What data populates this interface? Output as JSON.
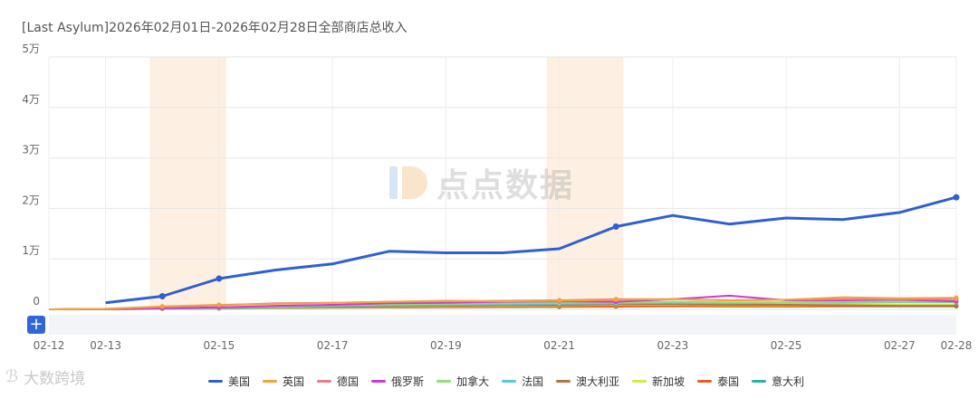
{
  "title": "[Last Asylum]2026年02月01日-2026年02月28日全部商店总收入",
  "watermark": "点点数据",
  "footer_logo": "大数跨境",
  "toolbar": {
    "expand_label": "+"
  },
  "colors": {
    "highlight_band": "#fdf0e2",
    "grid": "#e6e6e6",
    "axis": "#cfcfcf"
  },
  "chart_data": {
    "type": "line",
    "title": "[Last Asylum]2026年02月01日-2026年02月28日全部商店总收入",
    "x": [
      "02-12",
      "02-13",
      "02-14",
      "02-15",
      "02-16",
      "02-17",
      "02-18",
      "02-19",
      "02-20",
      "02-21",
      "02-22",
      "02-23",
      "02-24",
      "02-25",
      "02-26",
      "02-27",
      "02-28"
    ],
    "x_tick_labels": [
      "02-12",
      "02-13",
      "02-15",
      "02-17",
      "02-19",
      "02-21",
      "02-23",
      "02-25",
      "02-27",
      "02-28"
    ],
    "y_tick_labels": [
      "0",
      "1万",
      "2万",
      "3万",
      "4万",
      "5万"
    ],
    "ylim": [
      0,
      50000
    ],
    "grid": true,
    "legend_position": "bottom",
    "highlight_bands": [
      [
        "02-14",
        "02-15"
      ],
      [
        "02-21",
        "02-22"
      ]
    ],
    "series": [
      {
        "name": "美国",
        "color": "#2f5fd0",
        "width": 3,
        "values": [
          null,
          1300,
          2600,
          6100,
          7800,
          9000,
          11500,
          11200,
          11200,
          12000,
          16400,
          18600,
          16900,
          18100,
          17800,
          19200,
          22200
        ]
      },
      {
        "name": "英国",
        "color": "#f2a23b",
        "width": 2,
        "values": [
          0,
          100,
          600,
          900,
          1100,
          1300,
          1500,
          1700,
          1600,
          1700,
          1900,
          2000,
          1800,
          1900,
          2400,
          2200,
          2300
        ]
      },
      {
        "name": "德国",
        "color": "#ee7b86",
        "width": 2,
        "values": [
          0,
          100,
          500,
          800,
          1200,
          1300,
          1500,
          1600,
          1700,
          1800,
          2000,
          2000,
          1800,
          1900,
          2000,
          2000,
          2000
        ]
      },
      {
        "name": "俄罗斯",
        "color": "#c93ad6",
        "width": 2,
        "values": [
          0,
          50,
          200,
          400,
          700,
          900,
          1200,
          1300,
          1500,
          1600,
          1500,
          2000,
          2700,
          1800,
          1800,
          1900,
          1600
        ]
      },
      {
        "name": "加拿大",
        "color": "#8fde7b",
        "width": 2,
        "values": [
          0,
          40,
          200,
          400,
          600,
          800,
          1000,
          1100,
          1200,
          1300,
          1400,
          1500,
          1400,
          1400,
          1500,
          1500,
          1500
        ]
      },
      {
        "name": "法国",
        "color": "#55c7e6",
        "width": 2,
        "values": [
          0,
          30,
          150,
          300,
          500,
          700,
          800,
          900,
          1000,
          1100,
          1200,
          1300,
          1200,
          1300,
          1300,
          1400,
          1400
        ]
      },
      {
        "name": "澳大利亚",
        "color": "#b8733b",
        "width": 2,
        "values": [
          0,
          30,
          150,
          250,
          400,
          500,
          600,
          700,
          800,
          900,
          1000,
          1000,
          900,
          900,
          800,
          700,
          700
        ]
      },
      {
        "name": "新加坡",
        "color": "#d6e84a",
        "width": 2,
        "values": [
          0,
          20,
          100,
          200,
          300,
          400,
          500,
          600,
          700,
          800,
          900,
          900,
          800,
          800,
          900,
          900,
          900
        ]
      },
      {
        "name": "泰国",
        "color": "#ea5d1f",
        "width": 2,
        "values": [
          0,
          20,
          100,
          200,
          300,
          350,
          400,
          450,
          500,
          550,
          600,
          650,
          600,
          600,
          650,
          650,
          650
        ]
      },
      {
        "name": "意大利",
        "color": "#2ab3a3",
        "width": 2,
        "values": [
          0,
          20,
          100,
          150,
          250,
          300,
          350,
          400,
          450,
          500,
          550,
          600,
          550,
          550,
          600,
          600,
          600
        ]
      }
    ]
  }
}
